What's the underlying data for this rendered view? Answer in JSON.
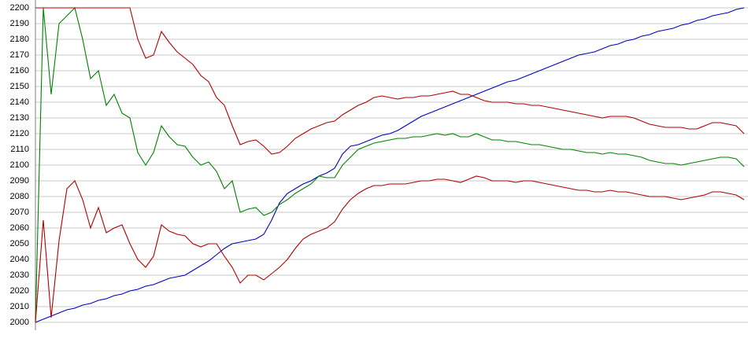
{
  "chart_data": {
    "type": "line",
    "ylim": [
      2000,
      2200
    ],
    "yticks": [
      2000,
      2010,
      2020,
      2030,
      2040,
      2050,
      2060,
      2070,
      2080,
      2090,
      2100,
      2110,
      2120,
      2130,
      2140,
      2150,
      2160,
      2170,
      2180,
      2190,
      2200
    ],
    "grid": true,
    "categories": [
      null,
      null,
      null,
      null,
      null,
      null,
      null,
      null,
      null,
      null,
      null,
      null,
      null,
      null,
      null,
      null,
      null,
      null,
      null,
      null,
      null,
      null,
      null,
      null,
      null,
      null,
      null,
      null,
      null,
      null,
      null,
      null,
      null,
      null,
      null,
      null,
      null,
      null,
      null,
      null,
      null,
      null,
      null,
      null,
      null,
      null,
      null,
      null,
      null,
      null,
      null,
      null,
      null,
      null,
      null,
      null,
      null,
      null,
      null,
      null,
      null,
      null,
      null,
      null,
      null,
      null,
      null,
      null,
      null,
      null,
      null,
      null,
      null,
      null,
      null,
      null,
      null,
      null,
      null,
      null,
      null,
      null,
      null,
      null,
      null,
      null,
      null,
      null,
      null,
      null,
      null
    ],
    "series": [
      {
        "color": "#0000c0",
        "values": [
          2000,
          2002,
          2004,
          2006,
          2008,
          2009,
          2011,
          2012,
          2014,
          2015,
          2017,
          2018,
          2020,
          2021,
          2023,
          2024,
          2026,
          2028,
          2029,
          2030,
          2033,
          2036,
          2039,
          2043,
          2047,
          2050,
          2051,
          2052,
          2053,
          2056,
          2065,
          2076,
          2082,
          2085,
          2088,
          2090,
          2093,
          2095,
          2098,
          2107,
          2112,
          2113,
          2115,
          2117,
          2119,
          2120,
          2122,
          2125,
          2128,
          2131,
          2133,
          2135,
          2137,
          2139,
          2141,
          2143,
          2145,
          2147,
          2149,
          2151,
          2153,
          2154,
          2156,
          2158,
          2160,
          2162,
          2164,
          2166,
          2168,
          2170,
          2171,
          2172,
          2174,
          2176,
          2177,
          2179,
          2180,
          2182,
          2183,
          2185,
          2186,
          2187,
          2189,
          2190,
          2192,
          2193,
          2195,
          2196,
          2197,
          2199,
          2200
        ]
      },
      {
        "color": "#008000",
        "values": [
          2000,
          2200,
          2145,
          2190,
          2195,
          2200,
          2180,
          2155,
          2160,
          2138,
          2145,
          2133,
          2130,
          2108,
          2100,
          2108,
          2125,
          2118,
          2113,
          2112,
          2105,
          2100,
          2102,
          2096,
          2085,
          2090,
          2070,
          2072,
          2073,
          2068,
          2070,
          2075,
          2078,
          2082,
          2085,
          2088,
          2093,
          2092,
          2092,
          2100,
          2105,
          2110,
          2112,
          2114,
          2115,
          2116,
          2117,
          2117,
          2118,
          2118,
          2119,
          2120,
          2119,
          2120,
          2118,
          2118,
          2120,
          2118,
          2116,
          2116,
          2115,
          2115,
          2114,
          2113,
          2113,
          2112,
          2111,
          2110,
          2110,
          2109,
          2108,
          2108,
          2107,
          2108,
          2107,
          2107,
          2106,
          2105,
          2103,
          2102,
          2101,
          2101,
          2100,
          2101,
          2102,
          2103,
          2104,
          2105,
          2105,
          2104,
          2099
        ]
      },
      {
        "color": "#b00000",
        "values": [
          2200,
          2200,
          2200,
          2200,
          2200,
          2200,
          2200,
          2200,
          2200,
          2200,
          2200,
          2200,
          2200,
          2180,
          2168,
          2170,
          2185,
          2178,
          2172,
          2168,
          2164,
          2157,
          2153,
          2143,
          2138,
          2125,
          2113,
          2115,
          2116,
          2112,
          2107,
          2108,
          2112,
          2117,
          2120,
          2123,
          2125,
          2127,
          2128,
          2132,
          2135,
          2138,
          2140,
          2143,
          2144,
          2143,
          2142,
          2143,
          2143,
          2144,
          2144,
          2145,
          2146,
          2147,
          2145,
          2145,
          2143,
          2141,
          2140,
          2140,
          2140,
          2139,
          2139,
          2138,
          2138,
          2137,
          2136,
          2135,
          2134,
          2133,
          2132,
          2131,
          2130,
          2131,
          2131,
          2131,
          2130,
          2128,
          2126,
          2125,
          2124,
          2124,
          2124,
          2123,
          2123,
          2125,
          2127,
          2127,
          2126,
          2125,
          2120
        ]
      },
      {
        "color": "#b00000",
        "values": [
          2000,
          2065,
          2003,
          2052,
          2085,
          2090,
          2078,
          2060,
          2073,
          2057,
          2060,
          2062,
          2050,
          2040,
          2035,
          2042,
          2062,
          2058,
          2056,
          2055,
          2050,
          2048,
          2050,
          2050,
          2042,
          2035,
          2025,
          2030,
          2030,
          2027,
          2031,
          2035,
          2040,
          2047,
          2053,
          2056,
          2058,
          2060,
          2064,
          2072,
          2078,
          2082,
          2085,
          2087,
          2087,
          2088,
          2088,
          2088,
          2089,
          2090,
          2090,
          2091,
          2091,
          2090,
          2089,
          2091,
          2093,
          2092,
          2090,
          2090,
          2090,
          2089,
          2090,
          2090,
          2089,
          2088,
          2087,
          2086,
          2085,
          2084,
          2084,
          2083,
          2083,
          2084,
          2083,
          2083,
          2082,
          2081,
          2080,
          2080,
          2080,
          2079,
          2078,
          2079,
          2080,
          2081,
          2083,
          2083,
          2082,
          2081,
          2078
        ]
      }
    ]
  }
}
